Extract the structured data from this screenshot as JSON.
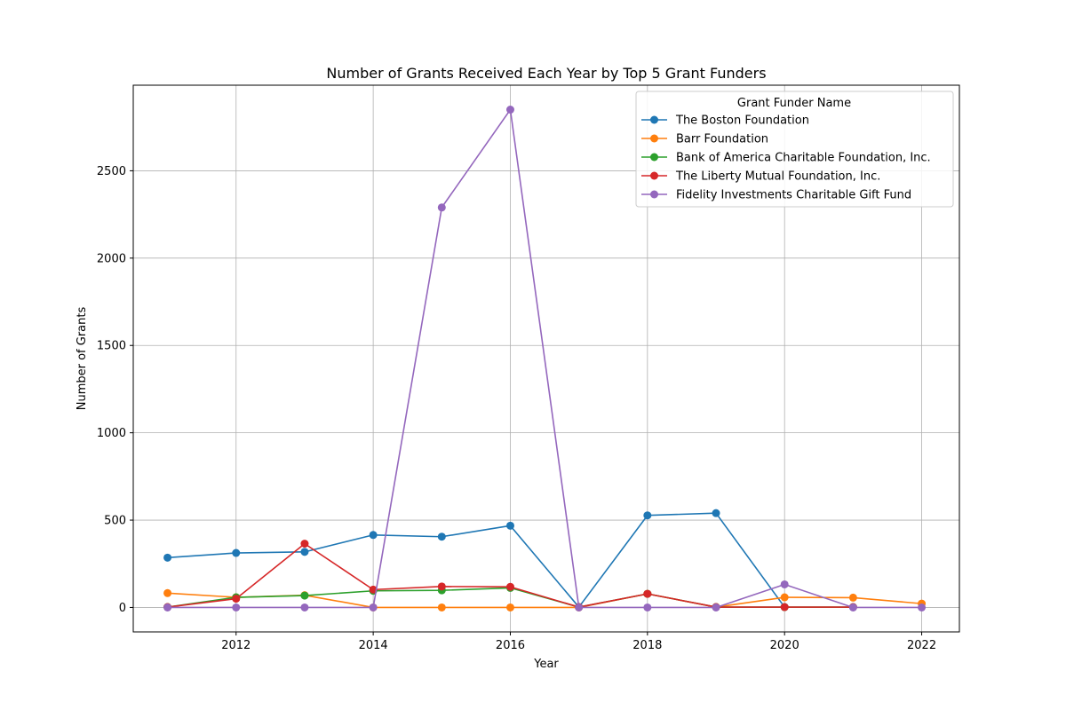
{
  "chart_data": {
    "type": "line",
    "title": "Number of Grants Received Each Year by Top 5 Grant Funders",
    "xlabel": "Year",
    "ylabel": "Number of Grants",
    "xlim": [
      2010.5,
      2022.55
    ],
    "ylim": [
      -140,
      2990
    ],
    "xticks": [
      2012,
      2014,
      2016,
      2018,
      2020,
      2022
    ],
    "yticks": [
      0,
      500,
      1000,
      1500,
      2000,
      2500
    ],
    "grid": true,
    "legend": {
      "title": "Grant Funder Name",
      "placement": "top-right"
    },
    "x": [
      2011,
      2012,
      2013,
      2014,
      2015,
      2016,
      2017,
      2018,
      2019,
      2020,
      2021,
      2022
    ],
    "series": [
      {
        "name": "The Boston Foundation",
        "color": "#1f77b4",
        "points": [
          [
            2011,
            285
          ],
          [
            2012,
            312
          ],
          [
            2013,
            318
          ],
          [
            2014,
            415
          ],
          [
            2015,
            405
          ],
          [
            2016,
            468
          ],
          [
            2017,
            2
          ],
          [
            2018,
            527
          ],
          [
            2019,
            540
          ],
          [
            2020,
            2
          ]
        ]
      },
      {
        "name": "Barr Foundation",
        "color": "#ff7f0e",
        "points": [
          [
            2011,
            82
          ],
          [
            2012,
            58
          ],
          [
            2013,
            70
          ],
          [
            2014,
            0
          ],
          [
            2015,
            0
          ],
          [
            2016,
            0
          ],
          [
            2017,
            0
          ],
          [
            2018,
            78
          ],
          [
            2019,
            2
          ],
          [
            2020,
            58
          ],
          [
            2021,
            56
          ],
          [
            2022,
            22
          ]
        ]
      },
      {
        "name": "Bank of America Charitable Foundation, Inc.",
        "color": "#2ca02c",
        "points": [
          [
            2011,
            2
          ],
          [
            2012,
            58
          ],
          [
            2013,
            68
          ],
          [
            2014,
            95
          ],
          [
            2015,
            98
          ],
          [
            2016,
            112
          ],
          [
            2017,
            2
          ],
          [
            2018,
            78
          ],
          [
            2019,
            2
          ],
          [
            2020,
            2
          ],
          [
            2021,
            2
          ]
        ]
      },
      {
        "name": "The Liberty Mutual Foundation, Inc.",
        "color": "#d62728",
        "points": [
          [
            2011,
            2
          ],
          [
            2012,
            50
          ],
          [
            2013,
            365
          ],
          [
            2014,
            102
          ],
          [
            2015,
            120
          ],
          [
            2016,
            118
          ],
          [
            2017,
            2
          ],
          [
            2018,
            78
          ],
          [
            2019,
            2
          ],
          [
            2020,
            2
          ],
          [
            2021,
            2
          ]
        ]
      },
      {
        "name": "Fidelity Investments Charitable Gift Fund",
        "color": "#9467bd",
        "points": [
          [
            2011,
            0
          ],
          [
            2012,
            0
          ],
          [
            2013,
            0
          ],
          [
            2014,
            0
          ],
          [
            2015,
            2290
          ],
          [
            2016,
            2850
          ],
          [
            2017,
            0
          ],
          [
            2018,
            0
          ],
          [
            2019,
            0
          ],
          [
            2020,
            132
          ],
          [
            2021,
            0
          ],
          [
            2022,
            0
          ]
        ]
      }
    ]
  }
}
